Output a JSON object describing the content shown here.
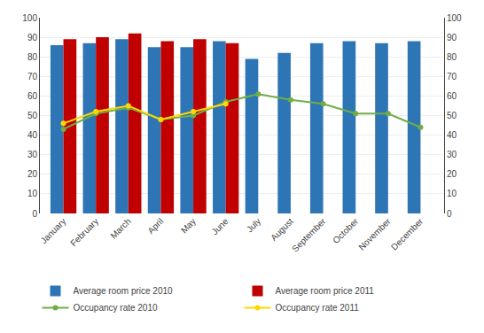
{
  "chart_data": {
    "type": "bar",
    "categories": [
      "January",
      "February",
      "March",
      "April",
      "May",
      "June",
      "July",
      "August",
      "September",
      "October",
      "November",
      "December"
    ],
    "series": [
      {
        "name": "Average room price 2010",
        "type": "bar",
        "color": "#2E75B6",
        "values": [
          86,
          87,
          89,
          85,
          85,
          88,
          79,
          82,
          87,
          88,
          87,
          88
        ]
      },
      {
        "name": "Average room price 2011",
        "type": "bar",
        "color": "#C00000",
        "values": [
          89,
          90,
          92,
          88,
          89,
          87,
          null,
          null,
          null,
          null,
          null,
          null
        ]
      },
      {
        "name": "Occupancy rate 2010",
        "type": "line",
        "axis": "y2",
        "color": "#70AD47",
        "marker": "circle",
        "line_style": "solid",
        "values": [
          43,
          51,
          54,
          48,
          50,
          57,
          61,
          58,
          56,
          51,
          51,
          44
        ]
      },
      {
        "name": "Occupancy rate 2011",
        "type": "line",
        "axis": "y2",
        "color": "#FFD700",
        "marker": "circle",
        "line_style": "solid",
        "values": [
          46,
          52,
          55,
          48,
          52,
          56,
          null,
          null,
          null,
          null,
          null,
          null
        ]
      }
    ],
    "ylim": [
      0,
      100
    ],
    "yticks": [
      0,
      10,
      20,
      30,
      40,
      50,
      60,
      70,
      80,
      90,
      100
    ],
    "y2lim": [
      0,
      100
    ],
    "y2ticks": [
      0,
      10,
      20,
      30,
      40,
      50,
      60,
      70,
      80,
      90,
      100
    ],
    "grid": true,
    "legend": "bottom"
  }
}
